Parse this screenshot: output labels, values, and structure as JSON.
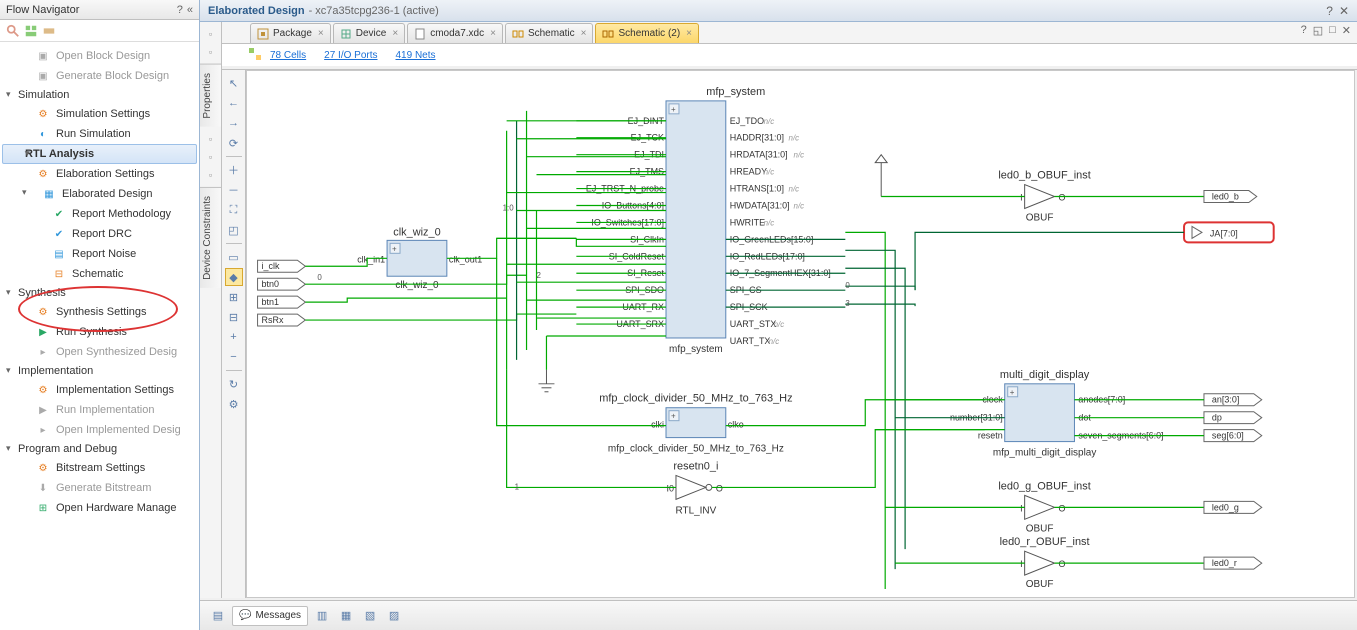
{
  "flowNav": {
    "title": "Flow Navigator",
    "groups": {
      "blockDesign": {
        "open": "Open Block Design",
        "generate": "Generate Block Design"
      },
      "simulation": {
        "label": "Simulation",
        "settings": "Simulation Settings",
        "run": "Run Simulation"
      },
      "rtl": {
        "label": "RTL Analysis",
        "elabSettings": "Elaboration Settings",
        "elabDesign": "Elaborated Design",
        "reportMethodology": "Report Methodology",
        "reportDRC": "Report DRC",
        "reportNoise": "Report Noise",
        "schematic": "Schematic"
      },
      "synthesis": {
        "label": "Synthesis",
        "settings": "Synthesis Settings",
        "run": "Run Synthesis",
        "open": "Open Synthesized Desig"
      },
      "implementation": {
        "label": "Implementation",
        "settings": "Implementation Settings",
        "run": "Run Implementation",
        "open": "Open Implemented Desig"
      },
      "program": {
        "label": "Program and Debug",
        "bitstreamSettings": "Bitstream Settings",
        "generateBitstream": "Generate Bitstream",
        "openHW": "Open Hardware Manage"
      }
    }
  },
  "mainHeader": {
    "title": "Elaborated Design",
    "sub": "- xc7a35tcpg236-1  (active)"
  },
  "vtabs": {
    "properties": "Properties",
    "constraints": "Device Constraints"
  },
  "tabs": {
    "package": "Package",
    "device": "Device",
    "xdc": "cmoda7.xdc",
    "schematic1": "Schematic",
    "schematic2": "Schematic (2)"
  },
  "links": {
    "cells": "78 Cells",
    "io": "27 I/O Ports",
    "nets": "419 Nets"
  },
  "schematic": {
    "inputs": {
      "iclk": "i_clk",
      "btn0": "btn0",
      "btn1": "btn1",
      "rsrx": "RsRx"
    },
    "clkwiz": {
      "title": "clk_wiz_0",
      "sub": "clk_wiz_0",
      "in": "clk_in1",
      "out": "clk_out1"
    },
    "mfp": {
      "title": "mfp_system",
      "sub": "mfp_system",
      "left": [
        "EJ_DINT",
        "EJ_TCK",
        "EJ_TDI",
        "EJ_TMS",
        "EJ_TRST_N_probe",
        "IO_Buttons[4:0]",
        "IO_Switches[17:0]",
        "SI_ClkIn",
        "SI_ColdReset",
        "SI_Reset",
        "SPI_SDO",
        "UART_RX",
        "UART_SRX"
      ],
      "right": [
        {
          "n": "EJ_TDO",
          "nc": true
        },
        {
          "n": "HADDR[31:0]",
          "nc": true
        },
        {
          "n": "HRDATA[31:0]",
          "nc": true
        },
        {
          "n": "HREADY",
          "nc": true
        },
        {
          "n": "HTRANS[1:0]",
          "nc": true
        },
        {
          "n": "HWDATA[31:0]",
          "nc": true
        },
        {
          "n": "HWRITE",
          "nc": true
        },
        {
          "n": "IO_GreenLEDs[15:0]"
        },
        {
          "n": "IO_RedLEDs[17:0]"
        },
        {
          "n": "IO_7_SegmentHEX[31:0]"
        },
        {
          "n": "SPI_CS"
        },
        {
          "n": "SPI_SCK"
        },
        {
          "n": "UART_STX",
          "nc": true
        },
        {
          "n": "UART_TX",
          "nc": true
        }
      ]
    },
    "clkdiv": {
      "title": "mfp_clock_divider_50_MHz_to_763_Hz",
      "sub": "mfp_clock_divider_50_MHz_to_763_Hz",
      "in": "clki",
      "out": "clko"
    },
    "inv": {
      "title": "resetn0_i",
      "sub": "RTL_INV",
      "in": "I0",
      "out": "O"
    },
    "obuf_b": {
      "title": "led0_b_OBUF_inst",
      "sub": "OBUF",
      "in": "I",
      "out": "O"
    },
    "obuf_g": {
      "title": "led0_g_OBUF_inst",
      "sub": "OBUF",
      "in": "I",
      "out": "O"
    },
    "obuf_r": {
      "title": "led0_r_OBUF_inst",
      "sub": "OBUF",
      "in": "I",
      "out": "O"
    },
    "mdd": {
      "title": "multi_digit_display",
      "sub": "mfp_multi_digit_display",
      "left": [
        "clock",
        "number[31:0]",
        "resetn"
      ],
      "right": [
        "anodes[7:0]",
        "dot",
        "seven_segments[6:0]"
      ]
    },
    "outputs": {
      "led0b": "led0_b",
      "ja": "JA[7:0]",
      "an": "an[3:0]",
      "dp": "dp",
      "seg": "seg[6:0]",
      "led0g": "led0_g",
      "led0r": "led0_r"
    }
  },
  "status": {
    "messages": "Messages"
  },
  "colors": {
    "wire": "#00a000",
    "block": "#d8e4f0",
    "blockBorder": "#5b85b6",
    "highlight": "#d33",
    "tabActive": "#fcd76a"
  }
}
